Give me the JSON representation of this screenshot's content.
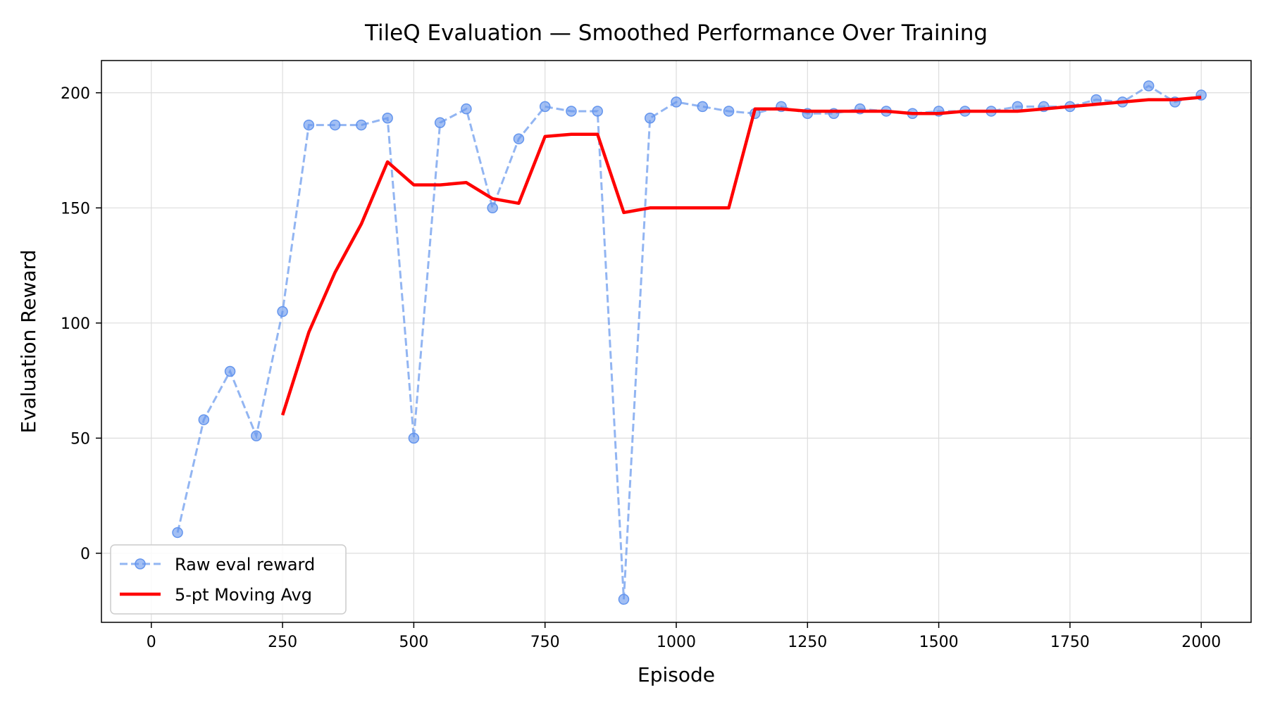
{
  "chart_data": {
    "type": "line",
    "title": "TileQ Evaluation — Smoothed Performance Over Training",
    "xlabel": "Episode",
    "ylabel": "Evaluation Reward",
    "xlim": [
      -95,
      2095
    ],
    "ylim": [
      -30,
      214
    ],
    "xticks": [
      0,
      250,
      500,
      750,
      1000,
      1250,
      1500,
      1750,
      2000
    ],
    "yticks": [
      0,
      50,
      100,
      150,
      200
    ],
    "grid": true,
    "legend": "lower-left",
    "colors": {
      "raw": "#6495ED",
      "avg": "#FF0000",
      "grid": "#DDDDDD",
      "axis": "#000000"
    },
    "series": [
      {
        "name": "Raw eval reward",
        "style": "dashed-markers",
        "x": [
          50,
          100,
          150,
          200,
          250,
          300,
          350,
          400,
          450,
          500,
          550,
          600,
          650,
          700,
          750,
          800,
          850,
          900,
          950,
          1000,
          1050,
          1100,
          1150,
          1200,
          1250,
          1300,
          1350,
          1400,
          1450,
          1500,
          1550,
          1600,
          1650,
          1700,
          1750,
          1800,
          1850,
          1900,
          1950,
          2000
        ],
        "y": [
          9,
          58,
          79,
          51,
          105,
          186,
          186,
          186,
          189,
          50,
          187,
          193,
          150,
          180,
          194,
          192,
          192,
          -20,
          189,
          196,
          194,
          192,
          191,
          194,
          191,
          191,
          193,
          192,
          191,
          192,
          192,
          192,
          194,
          194,
          194,
          197,
          196,
          203,
          196,
          199
        ]
      },
      {
        "name": "5-pt Moving Avg",
        "style": "solid",
        "x": [
          250,
          300,
          350,
          400,
          450,
          500,
          550,
          600,
          650,
          700,
          750,
          800,
          850,
          900,
          950,
          1000,
          1050,
          1100,
          1150,
          1200,
          1250,
          1300,
          1350,
          1400,
          1450,
          1500,
          1550,
          1600,
          1650,
          1700,
          1750,
          1800,
          1850,
          1900,
          1950,
          2000
        ],
        "y": [
          60,
          96,
          122,
          143,
          170,
          160,
          160,
          161,
          154,
          152,
          181,
          182,
          182,
          148,
          150,
          150,
          150,
          150,
          193,
          193,
          192,
          192,
          192,
          192,
          191,
          191,
          192,
          192,
          192,
          193,
          194,
          195,
          196,
          197,
          197,
          198
        ]
      }
    ]
  }
}
